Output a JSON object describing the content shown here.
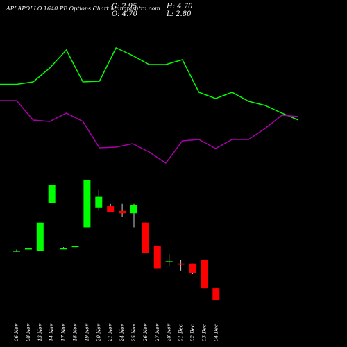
{
  "header": {
    "title": "APLAPOLLO 1640  PE Options  Chart Munafasutra.com",
    "close_label": "C: 2.95",
    "open_label": "O: 4.70",
    "high_label": "H: 4.70",
    "low_label": "L: 2.80"
  },
  "colors": {
    "background": "#000000",
    "up": "#00ff00",
    "down": "#ff0000",
    "line1": "#00ff00",
    "line2": "#aa00aa",
    "text": "#ffffff"
  },
  "chart_data": {
    "type": "candlestick",
    "categories": [
      "06 Nov",
      "08 Nov",
      "13 Nov",
      "14 Nov",
      "17 Nov",
      "18 Nov",
      "19 Nov",
      "20 Nov",
      "21 Nov",
      "24 Nov",
      "25 Nov",
      "26 Nov",
      "27 Nov",
      "28 Nov",
      "01 Dec",
      "02 Dec",
      "03 Dec",
      "04 Dec"
    ],
    "candles": [
      {
        "open": 4.2,
        "high": 4.3,
        "low": 4.1,
        "close": 4.2
      },
      {
        "open": 4.3,
        "high": 4.4,
        "low": 4.3,
        "close": 4.4
      },
      {
        "open": 4.2,
        "high": 6.6,
        "low": 4.2,
        "close": 6.6
      },
      {
        "open": 8.3,
        "high": 9.8,
        "low": 8.3,
        "close": 9.8
      },
      {
        "open": 4.4,
        "high": 4.5,
        "low": 4.4,
        "close": 4.4
      },
      {
        "open": 4.5,
        "high": 4.6,
        "low": 4.5,
        "close": 4.6
      },
      {
        "open": 6.2,
        "high": 10.2,
        "low": 6.2,
        "close": 10.2
      },
      {
        "open": 7.9,
        "high": 9.4,
        "low": 7.6,
        "close": 8.8
      },
      {
        "open": 8.0,
        "high": 8.2,
        "low": 7.5,
        "close": 7.5
      },
      {
        "open": 7.6,
        "high": 8.2,
        "low": 7.1,
        "close": 7.4
      },
      {
        "open": 7.4,
        "high": 8.2,
        "low": 6.2,
        "close": 8.1
      },
      {
        "open": 6.6,
        "high": 6.6,
        "low": 4.0,
        "close": 4.0
      },
      {
        "open": 4.6,
        "high": 4.6,
        "low": 2.7,
        "close": 2.7
      },
      {
        "open": 3.3,
        "high": 3.9,
        "low": 2.9,
        "close": 3.3
      },
      {
        "open": 3.1,
        "high": 3.4,
        "low": 2.5,
        "close": 3.0
      },
      {
        "open": 3.1,
        "high": 3.1,
        "low": 2.2,
        "close": 2.3
      },
      {
        "open": 3.4,
        "high": 3.4,
        "low": 1.0,
        "close": 1.0
      },
      {
        "open": 1.0,
        "high": 1.0,
        "low": 0.0,
        "close": 0.0
      }
    ],
    "line1": [
      121.5,
      121.5,
      118,
      98,
      72,
      118,
      117,
      69,
      80,
      93,
      93,
      86,
      133,
      142,
      133,
      146,
      152,
      163,
      173
    ],
    "line2": [
      145,
      145,
      173,
      175,
      163,
      175,
      213,
      212,
      207,
      219,
      235,
      203,
      201,
      214,
      201,
      201,
      185,
      166,
      168
    ],
    "line_scale": {
      "top_y_value": 0,
      "note": "indicator lines use inverted overlay scale"
    }
  }
}
